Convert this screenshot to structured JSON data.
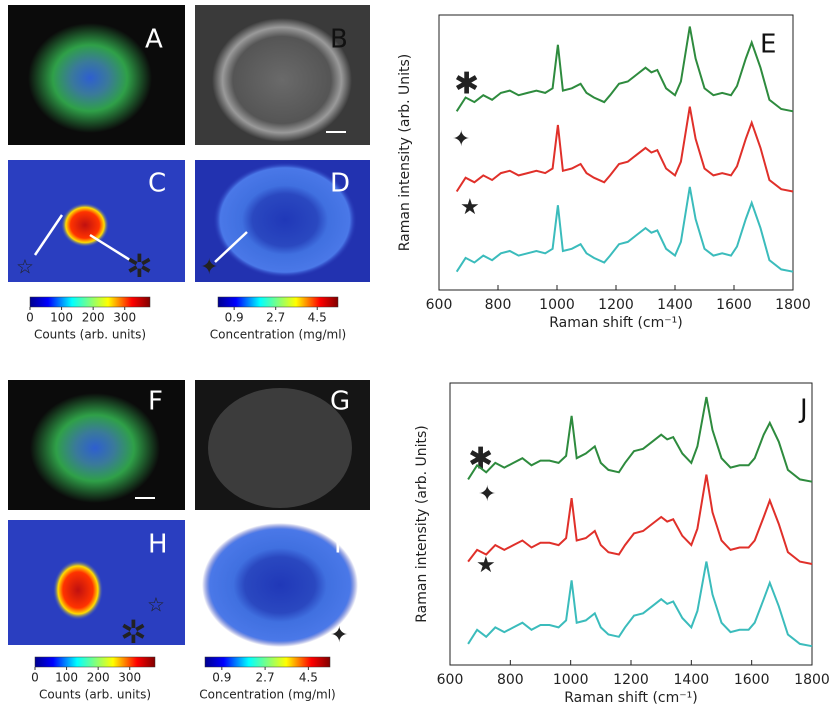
{
  "panels": [
    "A",
    "B",
    "C",
    "D",
    "E",
    "F",
    "G",
    "H",
    "I",
    "J"
  ],
  "chart_data": [
    {
      "type": "line",
      "xlabel": "Raman shift (cm⁻¹)",
      "ylabel": "Raman intensity (arb. Units)",
      "xlim": [
        600,
        1800
      ],
      "xticks": [
        600,
        800,
        1000,
        1200,
        1400,
        1600,
        1800
      ],
      "ylim": [
        0,
        12
      ],
      "x": [
        660,
        690,
        720,
        750,
        780,
        810,
        840,
        870,
        900,
        930,
        960,
        985,
        1003,
        1020,
        1050,
        1080,
        1100,
        1125,
        1160,
        1180,
        1210,
        1240,
        1270,
        1300,
        1320,
        1340,
        1370,
        1400,
        1420,
        1450,
        1470,
        1500,
        1530,
        1560,
        1590,
        1610,
        1640,
        1660,
        1690,
        1720,
        1760,
        1800
      ],
      "series": [
        {
          "color": "#2e8b3e",
          "values": [
            7.8,
            8.4,
            8.2,
            8.5,
            8.3,
            8.6,
            8.7,
            8.5,
            8.6,
            8.7,
            8.6,
            8.8,
            10.7,
            8.7,
            8.8,
            9.0,
            8.6,
            8.4,
            8.2,
            8.5,
            9.0,
            9.1,
            9.4,
            9.7,
            9.5,
            9.6,
            8.8,
            8.5,
            9.1,
            11.5,
            10.1,
            8.8,
            8.5,
            8.6,
            8.5,
            8.9,
            10.1,
            10.8,
            9.7,
            8.3,
            7.9,
            7.8
          ]
        },
        {
          "color": "#e0302a",
          "values": [
            4.3,
            4.9,
            4.7,
            5.0,
            4.8,
            5.1,
            5.2,
            5.0,
            5.1,
            5.2,
            5.1,
            5.3,
            7.2,
            5.2,
            5.3,
            5.5,
            5.1,
            4.9,
            4.7,
            5.0,
            5.5,
            5.6,
            5.9,
            6.2,
            6.0,
            6.1,
            5.3,
            5.0,
            5.6,
            8.0,
            6.6,
            5.3,
            5.0,
            5.1,
            5.0,
            5.4,
            6.6,
            7.3,
            6.2,
            4.8,
            4.4,
            4.3
          ]
        },
        {
          "color": "#3bbcbc",
          "values": [
            0.8,
            1.4,
            1.2,
            1.5,
            1.3,
            1.6,
            1.7,
            1.5,
            1.6,
            1.7,
            1.6,
            1.8,
            3.7,
            1.7,
            1.8,
            2.0,
            1.6,
            1.4,
            1.2,
            1.5,
            2.0,
            2.1,
            2.4,
            2.7,
            2.5,
            2.6,
            1.8,
            1.5,
            2.1,
            4.5,
            3.1,
            1.8,
            1.5,
            1.6,
            1.5,
            1.9,
            3.1,
            3.8,
            2.7,
            1.3,
            0.9,
            0.8
          ]
        }
      ]
    },
    {
      "type": "line",
      "xlabel": "Raman shift (cm⁻¹)",
      "ylabel": "Raman intensity (arb. Units)",
      "xlim": [
        600,
        1800
      ],
      "xticks": [
        600,
        800,
        1000,
        1200,
        1400,
        1600,
        1800
      ],
      "ylim": [
        0,
        12
      ],
      "x": [
        660,
        690,
        720,
        750,
        780,
        810,
        840,
        870,
        900,
        930,
        960,
        985,
        1003,
        1020,
        1050,
        1080,
        1100,
        1125,
        1160,
        1180,
        1210,
        1240,
        1270,
        1300,
        1320,
        1340,
        1370,
        1400,
        1420,
        1450,
        1470,
        1500,
        1530,
        1560,
        1590,
        1610,
        1640,
        1660,
        1690,
        1720,
        1760,
        1800
      ],
      "series": [
        {
          "color": "#2e8b3e",
          "values": [
            7.9,
            8.5,
            8.2,
            8.6,
            8.4,
            8.6,
            8.8,
            8.5,
            8.7,
            8.7,
            8.6,
            8.9,
            10.6,
            8.8,
            9.0,
            9.3,
            8.6,
            8.3,
            8.2,
            8.6,
            9.1,
            9.2,
            9.5,
            9.8,
            9.6,
            9.7,
            9.0,
            8.6,
            9.3,
            11.4,
            10.0,
            8.8,
            8.4,
            8.5,
            8.5,
            8.8,
            9.8,
            10.3,
            9.5,
            8.3,
            7.9,
            7.8
          ]
        },
        {
          "color": "#e0302a",
          "values": [
            4.4,
            4.9,
            4.7,
            5.1,
            4.9,
            5.1,
            5.3,
            5.0,
            5.2,
            5.2,
            5.1,
            5.4,
            7.1,
            5.3,
            5.4,
            5.7,
            5.1,
            4.8,
            4.7,
            5.1,
            5.6,
            5.7,
            6.0,
            6.3,
            6.1,
            6.2,
            5.5,
            5.1,
            5.8,
            8.1,
            6.5,
            5.3,
            4.9,
            5.0,
            5.0,
            5.3,
            6.3,
            7.0,
            6.0,
            4.8,
            4.4,
            4.3
          ]
        },
        {
          "color": "#3bbcbc",
          "values": [
            0.9,
            1.5,
            1.2,
            1.6,
            1.4,
            1.6,
            1.8,
            1.5,
            1.7,
            1.7,
            1.6,
            1.9,
            3.6,
            1.8,
            1.9,
            2.2,
            1.6,
            1.3,
            1.2,
            1.6,
            2.1,
            2.2,
            2.5,
            2.8,
            2.6,
            2.7,
            2.0,
            1.6,
            2.3,
            4.4,
            3.0,
            1.8,
            1.4,
            1.5,
            1.5,
            1.8,
            2.8,
            3.5,
            2.5,
            1.3,
            0.9,
            0.8
          ]
        }
      ]
    },
    {
      "type": "colorbar",
      "label": "Counts (arb. units)",
      "xlim": [
        0,
        380
      ],
      "xticks": [
        0,
        100,
        200,
        300
      ]
    },
    {
      "type": "colorbar",
      "label": "Concentration (mg/ml)",
      "xlim": [
        0.2,
        5.4
      ],
      "xticks": [
        0.9,
        2.7,
        4.5
      ]
    },
    {
      "type": "colorbar",
      "label": "Counts (arb. units)",
      "xlim": [
        0,
        380
      ],
      "xticks": [
        0,
        100,
        200,
        300
      ]
    },
    {
      "type": "colorbar",
      "label": "Concentration (mg/ml)",
      "xlim": [
        0.2,
        5.4
      ],
      "xticks": [
        0.9,
        2.7,
        4.5
      ]
    }
  ]
}
